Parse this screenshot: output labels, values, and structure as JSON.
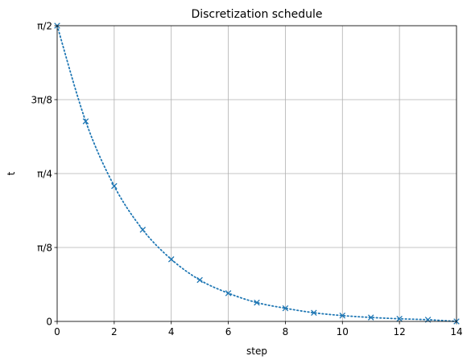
{
  "chart_data": {
    "type": "line",
    "title": "Discretization schedule",
    "xlabel": "step",
    "ylabel": "t",
    "xlim": [
      0,
      14
    ],
    "ylim": [
      0,
      1.5708
    ],
    "grid": true,
    "x_ticks": [
      {
        "value": 0,
        "label": "0"
      },
      {
        "value": 2,
        "label": "2"
      },
      {
        "value": 4,
        "label": "4"
      },
      {
        "value": 6,
        "label": "6"
      },
      {
        "value": 8,
        "label": "8"
      },
      {
        "value": 10,
        "label": "10"
      },
      {
        "value": 12,
        "label": "12"
      },
      {
        "value": 14,
        "label": "14"
      }
    ],
    "y_ticks": [
      {
        "value": 0,
        "label": "0"
      },
      {
        "value": 0.3927,
        "label": "π/8"
      },
      {
        "value": 0.7854,
        "label": "π/4"
      },
      {
        "value": 1.1781,
        "label": "3π/8"
      },
      {
        "value": 1.5708,
        "label": "π/2"
      }
    ],
    "series": [
      {
        "color": "#1f77b4",
        "line_style": "dotted",
        "marker": "x",
        "x": [
          0,
          1,
          2,
          3,
          4,
          5,
          6,
          7,
          8,
          9,
          10,
          11,
          12,
          13,
          14
        ],
        "y": [
          1.5708,
          1.063,
          0.719,
          0.487,
          0.33,
          0.22,
          0.15,
          0.1,
          0.07,
          0.046,
          0.031,
          0.021,
          0.014,
          0.009,
          0.0
        ]
      }
    ]
  }
}
